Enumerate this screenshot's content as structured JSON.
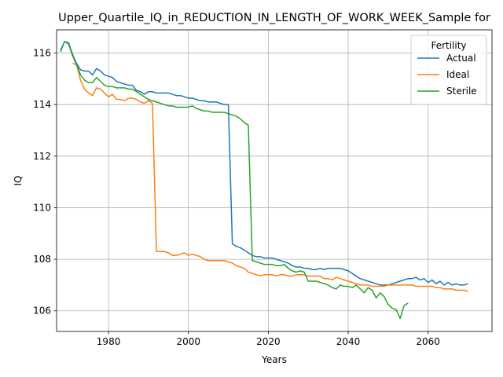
{
  "chart_data": {
    "type": "line",
    "title": "Upper_Quartile_IQ_in_REDUCTION_IN_LENGTH_OF_WORK_WEEK_Sample for",
    "xlabel": "Years",
    "ylabel": "IQ",
    "xlim": [
      1967,
      2076
    ],
    "ylim": [
      105.2,
      116.9
    ],
    "xticks": [
      1980,
      2000,
      2020,
      2040,
      2060
    ],
    "yticks": [
      106,
      108,
      110,
      112,
      114,
      116
    ],
    "grid": true,
    "legend": {
      "title": "Fertility",
      "placement": "top-right"
    },
    "series": [
      {
        "name": "Actual",
        "color": "#1f77b4",
        "points": [
          [
            1968,
            116.1
          ],
          [
            1969,
            116.45
          ],
          [
            1970,
            116.4
          ],
          [
            1971,
            115.95
          ],
          [
            1972,
            115.6
          ],
          [
            1973,
            115.35
          ],
          [
            1974,
            115.3
          ],
          [
            1975,
            115.3
          ],
          [
            1976,
            115.15
          ],
          [
            1977,
            115.4
          ],
          [
            1978,
            115.3
          ],
          [
            1979,
            115.15
          ],
          [
            1980,
            115.1
          ],
          [
            1981,
            115.05
          ],
          [
            1982,
            114.9
          ],
          [
            1983,
            114.85
          ],
          [
            1984,
            114.8
          ],
          [
            1985,
            114.75
          ],
          [
            1986,
            114.75
          ],
          [
            1987,
            114.55
          ],
          [
            1988,
            114.5
          ],
          [
            1989,
            114.4
          ],
          [
            1990,
            114.5
          ],
          [
            1991,
            114.5
          ],
          [
            1992,
            114.45
          ],
          [
            1993,
            114.45
          ],
          [
            1994,
            114.45
          ],
          [
            1995,
            114.45
          ],
          [
            1996,
            114.4
          ],
          [
            1997,
            114.35
          ],
          [
            1998,
            114.35
          ],
          [
            1999,
            114.3
          ],
          [
            2000,
            114.25
          ],
          [
            2001,
            114.25
          ],
          [
            2002,
            114.2
          ],
          [
            2003,
            114.15
          ],
          [
            2004,
            114.15
          ],
          [
            2005,
            114.1
          ],
          [
            2006,
            114.1
          ],
          [
            2007,
            114.1
          ],
          [
            2008,
            114.05
          ],
          [
            2009,
            114.0
          ],
          [
            2010,
            114.0
          ],
          [
            2011,
            108.6
          ],
          [
            2012,
            108.5
          ],
          [
            2013,
            108.45
          ],
          [
            2014,
            108.35
          ],
          [
            2015,
            108.25
          ],
          [
            2016,
            108.15
          ],
          [
            2017,
            108.1
          ],
          [
            2018,
            108.1
          ],
          [
            2019,
            108.05
          ],
          [
            2020,
            108.05
          ],
          [
            2021,
            108.05
          ],
          [
            2022,
            108.0
          ],
          [
            2023,
            107.95
          ],
          [
            2024,
            107.9
          ],
          [
            2025,
            107.85
          ],
          [
            2026,
            107.75
          ],
          [
            2027,
            107.7
          ],
          [
            2028,
            107.7
          ],
          [
            2029,
            107.65
          ],
          [
            2030,
            107.65
          ],
          [
            2031,
            107.6
          ],
          [
            2032,
            107.6
          ],
          [
            2033,
            107.65
          ],
          [
            2034,
            107.6
          ],
          [
            2035,
            107.65
          ],
          [
            2036,
            107.65
          ],
          [
            2037,
            107.65
          ],
          [
            2038,
            107.65
          ],
          [
            2039,
            107.6
          ],
          [
            2040,
            107.55
          ],
          [
            2041,
            107.45
          ],
          [
            2042,
            107.35
          ],
          [
            2043,
            107.25
          ],
          [
            2044,
            107.2
          ],
          [
            2045,
            107.15
          ],
          [
            2046,
            107.1
          ],
          [
            2047,
            107.05
          ],
          [
            2048,
            107.0
          ],
          [
            2049,
            107.0
          ],
          [
            2050,
            107.0
          ],
          [
            2051,
            107.05
          ],
          [
            2052,
            107.1
          ],
          [
            2053,
            107.15
          ],
          [
            2054,
            107.2
          ],
          [
            2055,
            107.25
          ],
          [
            2056,
            107.25
          ],
          [
            2057,
            107.3
          ],
          [
            2058,
            107.2
          ],
          [
            2059,
            107.25
          ],
          [
            2060,
            107.1
          ],
          [
            2061,
            107.2
          ],
          [
            2062,
            107.05
          ],
          [
            2063,
            107.15
          ],
          [
            2064,
            107.0
          ],
          [
            2065,
            107.1
          ],
          [
            2066,
            107.0
          ],
          [
            2067,
            107.05
          ],
          [
            2068,
            107.0
          ],
          [
            2069,
            107.0
          ],
          [
            2070,
            107.05
          ]
        ]
      },
      {
        "name": "Ideal",
        "color": "#ff7f0e",
        "points": [
          [
            1971,
            115.6
          ],
          [
            1972,
            115.55
          ],
          [
            1973,
            114.95
          ],
          [
            1974,
            114.6
          ],
          [
            1975,
            114.45
          ],
          [
            1976,
            114.35
          ],
          [
            1977,
            114.65
          ],
          [
            1978,
            114.6
          ],
          [
            1979,
            114.45
          ],
          [
            1980,
            114.3
          ],
          [
            1981,
            114.4
          ],
          [
            1982,
            114.2
          ],
          [
            1983,
            114.2
          ],
          [
            1984,
            114.15
          ],
          [
            1985,
            114.25
          ],
          [
            1986,
            114.25
          ],
          [
            1987,
            114.2
          ],
          [
            1988,
            114.1
          ],
          [
            1989,
            114.05
          ],
          [
            1990,
            114.15
          ],
          [
            1991,
            114.05
          ],
          [
            1992,
            108.3
          ],
          [
            1993,
            108.3
          ],
          [
            1994,
            108.3
          ],
          [
            1995,
            108.25
          ],
          [
            1996,
            108.15
          ],
          [
            1997,
            108.15
          ],
          [
            1998,
            108.2
          ],
          [
            1999,
            108.25
          ],
          [
            2000,
            108.15
          ],
          [
            2001,
            108.2
          ],
          [
            2002,
            108.15
          ],
          [
            2003,
            108.1
          ],
          [
            2004,
            108.0
          ],
          [
            2005,
            107.95
          ],
          [
            2006,
            107.95
          ],
          [
            2007,
            107.95
          ],
          [
            2008,
            107.95
          ],
          [
            2009,
            107.95
          ],
          [
            2010,
            107.9
          ],
          [
            2011,
            107.85
          ],
          [
            2012,
            107.75
          ],
          [
            2013,
            107.7
          ],
          [
            2014,
            107.65
          ],
          [
            2015,
            107.5
          ],
          [
            2016,
            107.45
          ],
          [
            2017,
            107.4
          ],
          [
            2018,
            107.35
          ],
          [
            2019,
            107.4
          ],
          [
            2020,
            107.4
          ],
          [
            2021,
            107.4
          ],
          [
            2022,
            107.35
          ],
          [
            2023,
            107.4
          ],
          [
            2024,
            107.4
          ],
          [
            2025,
            107.35
          ],
          [
            2026,
            107.35
          ],
          [
            2027,
            107.4
          ],
          [
            2028,
            107.4
          ],
          [
            2029,
            107.4
          ],
          [
            2030,
            107.35
          ],
          [
            2031,
            107.35
          ],
          [
            2032,
            107.35
          ],
          [
            2033,
            107.35
          ],
          [
            2034,
            107.25
          ],
          [
            2035,
            107.25
          ],
          [
            2036,
            107.2
          ],
          [
            2037,
            107.3
          ],
          [
            2038,
            107.25
          ],
          [
            2039,
            107.2
          ],
          [
            2040,
            107.15
          ],
          [
            2041,
            107.1
          ],
          [
            2042,
            107.05
          ],
          [
            2043,
            107.0
          ],
          [
            2044,
            107.0
          ],
          [
            2045,
            107.0
          ],
          [
            2046,
            106.95
          ],
          [
            2047,
            106.95
          ],
          [
            2048,
            106.95
          ],
          [
            2049,
            106.95
          ],
          [
            2050,
            107.0
          ],
          [
            2051,
            107.0
          ],
          [
            2052,
            107.0
          ],
          [
            2053,
            107.0
          ],
          [
            2054,
            107.0
          ],
          [
            2055,
            107.0
          ],
          [
            2056,
            107.0
          ],
          [
            2057,
            106.95
          ],
          [
            2058,
            106.95
          ],
          [
            2059,
            106.95
          ],
          [
            2060,
            106.95
          ],
          [
            2061,
            106.95
          ],
          [
            2062,
            106.9
          ],
          [
            2063,
            106.9
          ],
          [
            2064,
            106.85
          ],
          [
            2065,
            106.85
          ],
          [
            2066,
            106.85
          ],
          [
            2067,
            106.8
          ],
          [
            2068,
            106.8
          ],
          [
            2069,
            106.8
          ],
          [
            2070,
            106.75
          ]
        ]
      },
      {
        "name": "Sterile",
        "color": "#2ca02c",
        "points": [
          [
            1968,
            116.05
          ],
          [
            1969,
            116.45
          ],
          [
            1970,
            116.35
          ],
          [
            1971,
            115.9
          ],
          [
            1972,
            115.55
          ],
          [
            1973,
            115.15
          ],
          [
            1974,
            114.95
          ],
          [
            1975,
            114.85
          ],
          [
            1976,
            114.85
          ],
          [
            1977,
            115.05
          ],
          [
            1978,
            114.9
          ],
          [
            1979,
            114.75
          ],
          [
            1980,
            114.7
          ],
          [
            1981,
            114.7
          ],
          [
            1982,
            114.65
          ],
          [
            1983,
            114.65
          ],
          [
            1984,
            114.65
          ],
          [
            1985,
            114.6
          ],
          [
            1986,
            114.6
          ],
          [
            1987,
            114.5
          ],
          [
            1988,
            114.4
          ],
          [
            1989,
            114.3
          ],
          [
            1990,
            114.2
          ],
          [
            1991,
            114.15
          ],
          [
            1992,
            114.1
          ],
          [
            1993,
            114.05
          ],
          [
            1994,
            114.0
          ],
          [
            1995,
            113.95
          ],
          [
            1996,
            113.95
          ],
          [
            1997,
            113.9
          ],
          [
            1998,
            113.9
          ],
          [
            1999,
            113.9
          ],
          [
            2000,
            113.9
          ],
          [
            2001,
            113.95
          ],
          [
            2002,
            113.85
          ],
          [
            2003,
            113.8
          ],
          [
            2004,
            113.75
          ],
          [
            2005,
            113.75
          ],
          [
            2006,
            113.7
          ],
          [
            2007,
            113.7
          ],
          [
            2008,
            113.7
          ],
          [
            2009,
            113.7
          ],
          [
            2010,
            113.65
          ],
          [
            2011,
            113.6
          ],
          [
            2012,
            113.55
          ],
          [
            2013,
            113.45
          ],
          [
            2014,
            113.3
          ],
          [
            2015,
            113.2
          ],
          [
            2016,
            107.95
          ],
          [
            2017,
            107.9
          ],
          [
            2018,
            107.85
          ],
          [
            2019,
            107.8
          ],
          [
            2020,
            107.8
          ],
          [
            2021,
            107.8
          ],
          [
            2022,
            107.75
          ],
          [
            2023,
            107.75
          ],
          [
            2024,
            107.8
          ],
          [
            2025,
            107.65
          ],
          [
            2026,
            107.55
          ],
          [
            2027,
            107.5
          ],
          [
            2028,
            107.55
          ],
          [
            2029,
            107.5
          ],
          [
            2030,
            107.15
          ],
          [
            2031,
            107.15
          ],
          [
            2032,
            107.15
          ],
          [
            2033,
            107.1
          ],
          [
            2034,
            107.05
          ],
          [
            2035,
            107.0
          ],
          [
            2036,
            106.9
          ],
          [
            2037,
            106.85
          ],
          [
            2038,
            107.0
          ],
          [
            2039,
            106.95
          ],
          [
            2040,
            106.95
          ],
          [
            2041,
            106.9
          ],
          [
            2042,
            107.0
          ],
          [
            2043,
            106.85
          ],
          [
            2044,
            106.7
          ],
          [
            2045,
            106.9
          ],
          [
            2046,
            106.8
          ],
          [
            2047,
            106.5
          ],
          [
            2048,
            106.7
          ],
          [
            2049,
            106.55
          ],
          [
            2050,
            106.25
          ],
          [
            2051,
            106.1
          ],
          [
            2052,
            106.05
          ],
          [
            2053,
            105.7
          ],
          [
            2054,
            106.2
          ],
          [
            2055,
            106.3
          ]
        ]
      }
    ]
  }
}
